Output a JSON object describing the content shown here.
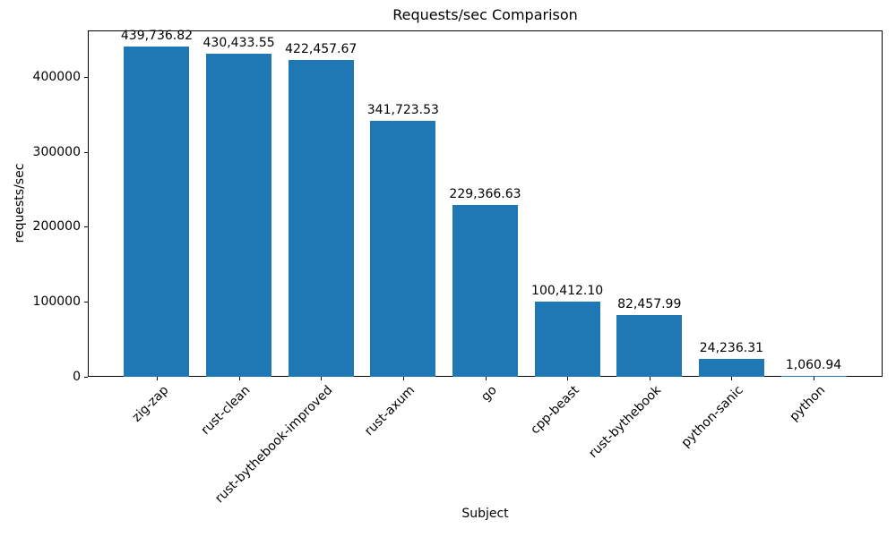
{
  "figure": {
    "title": "Requests/sec Comparison",
    "background_color": "#ffffff",
    "spine_color": "#000000",
    "text_color": "#000000"
  },
  "chart_data": {
    "type": "bar",
    "title": "Requests/sec Comparison",
    "xlabel": "Subject",
    "ylabel": "requests/sec",
    "categories": [
      "zig-zap",
      "rust-clean",
      "rust-bythebook-improved",
      "rust-axum",
      "go",
      "cpp-beast",
      "rust-bythebook",
      "python-sanic",
      "python"
    ],
    "values": [
      439736.82,
      430433.55,
      422457.67,
      341723.53,
      229366.63,
      100412.1,
      82457.99,
      24236.31,
      1060.94
    ],
    "value_labels": [
      "439,736.82",
      "430,433.55",
      "422,457.67",
      "341,723.53",
      "229,366.63",
      "100,412.10",
      "82,457.99",
      "24,236.31",
      "1,060.94"
    ],
    "y_ticks": [
      0,
      100000,
      200000,
      300000,
      400000
    ],
    "y_tick_labels": [
      "0",
      "100000",
      "200000",
      "300000",
      "400000"
    ],
    "ylim": [
      0,
      461723.66
    ],
    "xlim": [
      -0.84,
      8.84
    ],
    "bar_width_units": 0.8,
    "bar_color": "#1f77b4",
    "grid": false,
    "legend_position": "none",
    "x_tick_rotation_deg": 45
  }
}
